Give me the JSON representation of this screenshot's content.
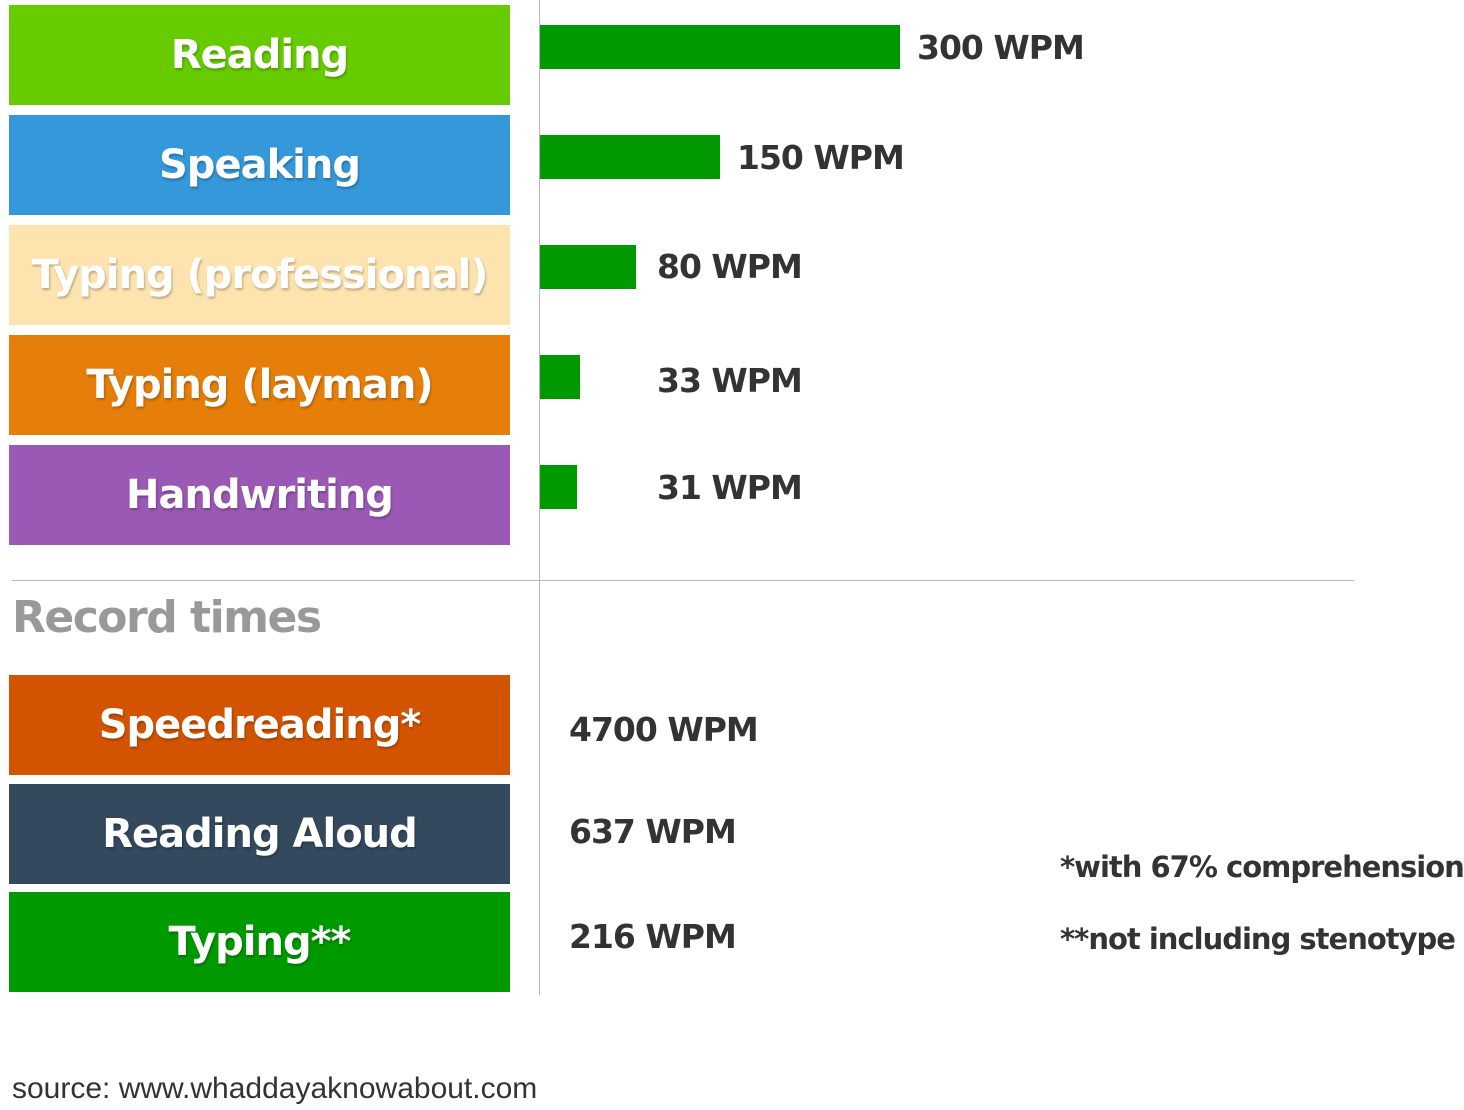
{
  "chart_data": {
    "type": "bar",
    "orientation": "horizontal",
    "unit": "WPM",
    "categories": [
      "Reading",
      "Speaking",
      "Typing (professional)",
      "Typing (layman)",
      "Handwriting"
    ],
    "values": [
      300,
      150,
      80,
      33,
      31
    ],
    "value_labels": [
      "300 WPM",
      "150 WPM",
      "80 WPM",
      "33 WPM",
      "31 WPM"
    ],
    "category_colors": [
      "#66cc00",
      "#3498db",
      "#fde3ae",
      "#e67e0a",
      "#9b59b6"
    ],
    "bar_color": "#009900",
    "xlim": [
      0,
      300
    ]
  },
  "record_times": {
    "title": "Record times",
    "items": [
      {
        "label": "Speedreading*",
        "value": "4700 WPM",
        "color": "#d35400"
      },
      {
        "label": "Reading Aloud",
        "value": "637 WPM",
        "color": "#34495e"
      },
      {
        "label": "Typing**",
        "value": "216 WPM",
        "color": "#009900"
      }
    ]
  },
  "footnotes": {
    "comprehension": "*with 67% comprehension",
    "stenotype": "**not including stenotype"
  },
  "source": "source: www.whaddayaknowabout.com"
}
